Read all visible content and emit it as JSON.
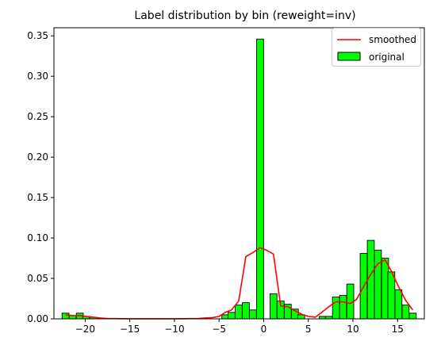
{
  "chart_data": {
    "type": "bar",
    "title": "Label distribution by bin (reweight=inv)",
    "xlabel": "",
    "ylabel": "",
    "xlim": [
      -23.5,
      18.0
    ],
    "ylim": [
      0,
      0.36
    ],
    "xticks": [
      -20,
      -15,
      -10,
      -5,
      0,
      5,
      10,
      15
    ],
    "yticks": [
      0.0,
      0.05,
      0.1,
      0.15,
      0.2,
      0.25,
      0.3,
      0.35
    ],
    "xtick_labels": [
      "−20",
      "−15",
      "−10",
      "−5",
      "0",
      "5",
      "10",
      "15"
    ],
    "ytick_labels": [
      "0.00",
      "0.05",
      "0.10",
      "0.15",
      "0.20",
      "0.25",
      "0.30",
      "0.35"
    ],
    "grid": false,
    "legend_position": "top-right",
    "bin_width": 0.779,
    "series": [
      {
        "name": "original",
        "kind": "bar",
        "color": "#00ff00",
        "edge_color": "#000000",
        "x": [
          -22.2,
          -21.4,
          -20.6,
          -19.9,
          -19.1,
          -18.3,
          -4.3,
          -3.6,
          -2.8,
          -2.0,
          -1.2,
          -0.4,
          1.1,
          1.9,
          2.7,
          3.5,
          4.2,
          6.6,
          7.3,
          8.1,
          8.9,
          9.7,
          11.2,
          12.0,
          12.8,
          13.6,
          14.3,
          15.1,
          15.9,
          16.7
        ],
        "values": [
          0.007,
          0.004,
          0.007,
          0.003,
          0.002,
          0.001,
          0.005,
          0.008,
          0.017,
          0.02,
          0.011,
          0.346,
          0.031,
          0.022,
          0.018,
          0.012,
          0.005,
          0.003,
          0.003,
          0.027,
          0.029,
          0.043,
          0.081,
          0.097,
          0.085,
          0.075,
          0.058,
          0.036,
          0.017,
          0.007
        ]
      },
      {
        "name": "smoothed",
        "kind": "line",
        "color": "#ff0000",
        "x": [
          -22.2,
          -21.4,
          -20.6,
          -19.9,
          -19.1,
          -18.3,
          -17.5,
          -16.7,
          -15.9,
          -15.1,
          -14.4,
          -13.6,
          -12.8,
          -12.0,
          -11.2,
          -10.4,
          -9.7,
          -8.9,
          -8.1,
          -7.3,
          -6.5,
          -5.7,
          -5.0,
          -4.3,
          -3.6,
          -2.8,
          -2.0,
          -1.2,
          -0.4,
          0.3,
          1.1,
          1.9,
          2.7,
          3.5,
          4.2,
          5.0,
          5.8,
          6.6,
          7.3,
          8.1,
          8.9,
          9.7,
          10.4,
          11.2,
          12.0,
          12.8,
          13.6,
          14.3,
          15.1,
          15.9,
          16.7
        ],
        "values": [
          0.005,
          0.004,
          0.004,
          0.003,
          0.002,
          0.001,
          0.0005,
          0.0003,
          0.0002,
          0.0001,
          0.0001,
          0.0001,
          0.0001,
          0.0001,
          0.0001,
          0.0001,
          0.0001,
          0.0002,
          0.0003,
          0.0005,
          0.001,
          0.0015,
          0.003,
          0.008,
          0.011,
          0.022,
          0.077,
          0.082,
          0.088,
          0.085,
          0.08,
          0.016,
          0.015,
          0.01,
          0.006,
          0.003,
          0.002,
          0.009,
          0.015,
          0.021,
          0.021,
          0.019,
          0.024,
          0.04,
          0.055,
          0.068,
          0.073,
          0.059,
          0.04,
          0.023,
          0.011
        ]
      }
    ]
  }
}
